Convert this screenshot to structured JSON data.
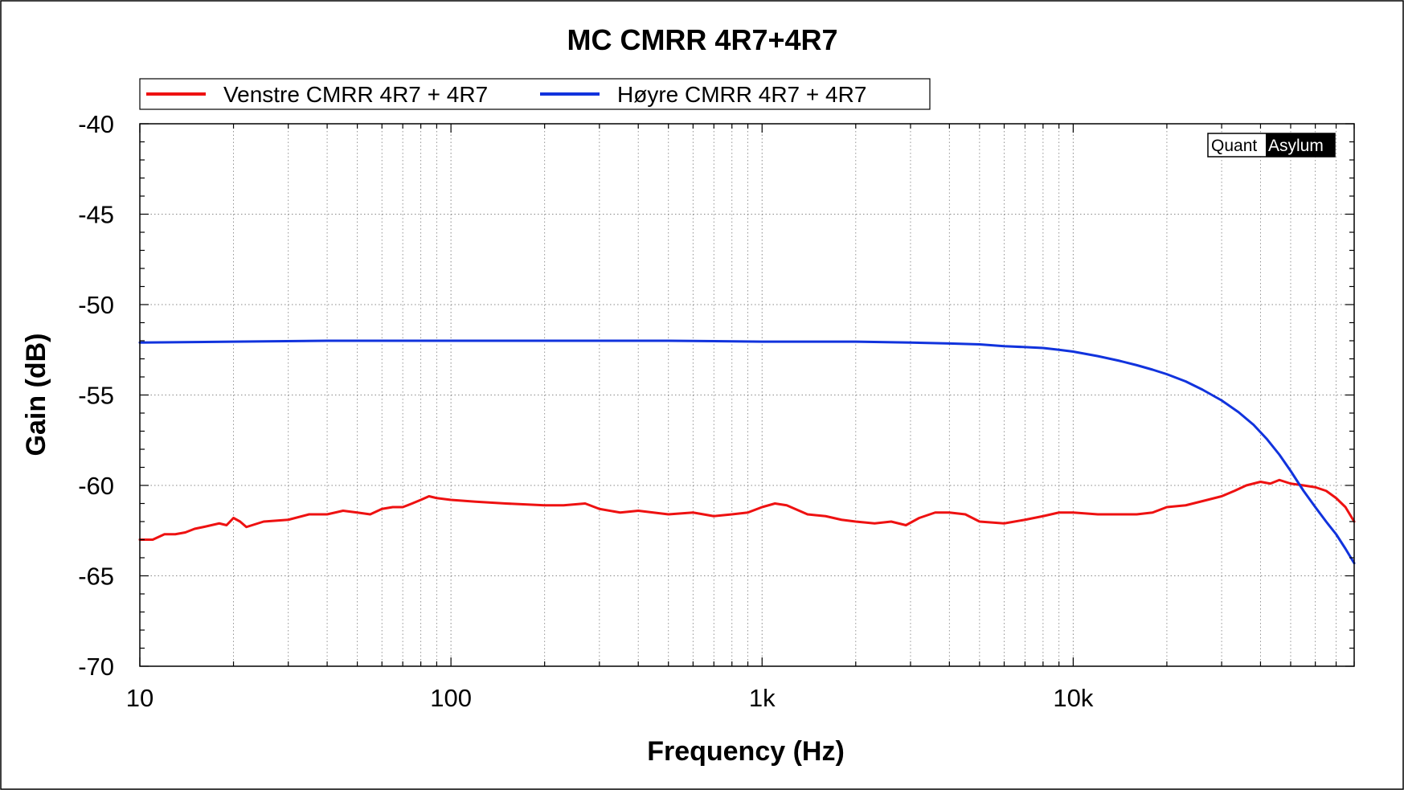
{
  "chart_data": {
    "type": "line",
    "title": "MC CMRR 4R7+4R7",
    "xlabel": "Frequency (Hz)",
    "ylabel": "Gain (dB)",
    "x_scale": "log",
    "xlim": [
      10,
      80000
    ],
    "ylim": [
      -70,
      -40
    ],
    "x_ticks": [
      {
        "value": 10,
        "label": "10"
      },
      {
        "value": 100,
        "label": "100"
      },
      {
        "value": 1000,
        "label": "1k"
      },
      {
        "value": 10000,
        "label": "10k"
      }
    ],
    "y_ticks": [
      {
        "value": -40,
        "label": "-40"
      },
      {
        "value": -45,
        "label": "-45"
      },
      {
        "value": -50,
        "label": "-50"
      },
      {
        "value": -55,
        "label": "-55"
      },
      {
        "value": -60,
        "label": "-60"
      },
      {
        "value": -65,
        "label": "-65"
      },
      {
        "value": -70,
        "label": "-70"
      }
    ],
    "grid": true,
    "legend_position": "top",
    "watermark": {
      "left": "Quant",
      "right": "Asylum"
    },
    "series": [
      {
        "name": "Venstre CMRR 4R7 + 4R7",
        "color": "#ee1111",
        "points": [
          [
            10,
            -63.0
          ],
          [
            11,
            -63.0
          ],
          [
            12,
            -62.7
          ],
          [
            13,
            -62.7
          ],
          [
            14,
            -62.6
          ],
          [
            15,
            -62.4
          ],
          [
            16,
            -62.3
          ],
          [
            18,
            -62.1
          ],
          [
            19,
            -62.2
          ],
          [
            20,
            -61.8
          ],
          [
            21,
            -62.0
          ],
          [
            22,
            -62.3
          ],
          [
            25,
            -62.0
          ],
          [
            30,
            -61.9
          ],
          [
            35,
            -61.6
          ],
          [
            40,
            -61.6
          ],
          [
            45,
            -61.4
          ],
          [
            50,
            -61.5
          ],
          [
            55,
            -61.6
          ],
          [
            60,
            -61.3
          ],
          [
            65,
            -61.2
          ],
          [
            70,
            -61.2
          ],
          [
            75,
            -61.0
          ],
          [
            80,
            -60.8
          ],
          [
            85,
            -60.6
          ],
          [
            90,
            -60.7
          ],
          [
            100,
            -60.8
          ],
          [
            120,
            -60.9
          ],
          [
            150,
            -61.0
          ],
          [
            200,
            -61.1
          ],
          [
            230,
            -61.1
          ],
          [
            270,
            -61.0
          ],
          [
            300,
            -61.3
          ],
          [
            350,
            -61.5
          ],
          [
            400,
            -61.4
          ],
          [
            500,
            -61.6
          ],
          [
            600,
            -61.5
          ],
          [
            700,
            -61.7
          ],
          [
            800,
            -61.6
          ],
          [
            900,
            -61.5
          ],
          [
            1000,
            -61.2
          ],
          [
            1100,
            -61.0
          ],
          [
            1200,
            -61.1
          ],
          [
            1400,
            -61.6
          ],
          [
            1600,
            -61.7
          ],
          [
            1800,
            -61.9
          ],
          [
            2000,
            -62.0
          ],
          [
            2300,
            -62.1
          ],
          [
            2600,
            -62.0
          ],
          [
            2900,
            -62.2
          ],
          [
            3200,
            -61.8
          ],
          [
            3600,
            -61.5
          ],
          [
            4000,
            -61.5
          ],
          [
            4500,
            -61.6
          ],
          [
            5000,
            -62.0
          ],
          [
            6000,
            -62.1
          ],
          [
            7000,
            -61.9
          ],
          [
            8000,
            -61.7
          ],
          [
            9000,
            -61.5
          ],
          [
            10000,
            -61.5
          ],
          [
            12000,
            -61.6
          ],
          [
            14000,
            -61.6
          ],
          [
            16000,
            -61.6
          ],
          [
            18000,
            -61.5
          ],
          [
            20000,
            -61.2
          ],
          [
            23000,
            -61.1
          ],
          [
            27000,
            -60.8
          ],
          [
            30000,
            -60.6
          ],
          [
            33000,
            -60.3
          ],
          [
            36000,
            -60.0
          ],
          [
            40000,
            -59.8
          ],
          [
            43000,
            -59.9
          ],
          [
            46000,
            -59.7
          ],
          [
            50000,
            -59.9
          ],
          [
            55000,
            -60.0
          ],
          [
            60000,
            -60.1
          ],
          [
            65000,
            -60.3
          ],
          [
            70000,
            -60.7
          ],
          [
            75000,
            -61.2
          ],
          [
            80000,
            -62.0
          ]
        ]
      },
      {
        "name": "Høyre CMRR 4R7 + 4R7",
        "color": "#1133dd",
        "points": [
          [
            10,
            -52.1
          ],
          [
            20,
            -52.05
          ],
          [
            40,
            -52.0
          ],
          [
            100,
            -52.0
          ],
          [
            200,
            -52.0
          ],
          [
            500,
            -52.0
          ],
          [
            1000,
            -52.05
          ],
          [
            2000,
            -52.05
          ],
          [
            3000,
            -52.1
          ],
          [
            4000,
            -52.15
          ],
          [
            5000,
            -52.2
          ],
          [
            6000,
            -52.3
          ],
          [
            7000,
            -52.35
          ],
          [
            8000,
            -52.4
          ],
          [
            9000,
            -52.5
          ],
          [
            10000,
            -52.6
          ],
          [
            12000,
            -52.85
          ],
          [
            14000,
            -53.1
          ],
          [
            16000,
            -53.35
          ],
          [
            18000,
            -53.6
          ],
          [
            20000,
            -53.85
          ],
          [
            23000,
            -54.25
          ],
          [
            26000,
            -54.7
          ],
          [
            30000,
            -55.3
          ],
          [
            34000,
            -55.95
          ],
          [
            38000,
            -56.65
          ],
          [
            42000,
            -57.45
          ],
          [
            46000,
            -58.3
          ],
          [
            50000,
            -59.2
          ],
          [
            55000,
            -60.3
          ],
          [
            60000,
            -61.2
          ],
          [
            65000,
            -62.0
          ],
          [
            70000,
            -62.7
          ],
          [
            75000,
            -63.5
          ],
          [
            80000,
            -64.3
          ]
        ]
      }
    ]
  }
}
